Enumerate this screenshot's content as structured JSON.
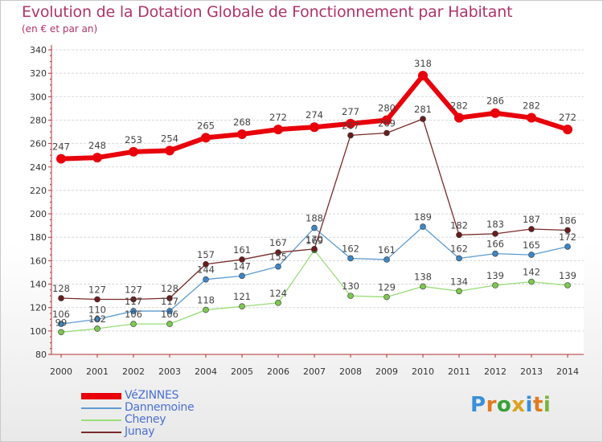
{
  "title": "Evolution de la Dotation Globale de Fonctionnement par Habitant",
  "subtitle": "(en € et par an)",
  "logo": {
    "text": "Proxiti",
    "letters": [
      "P",
      "r",
      "o",
      "x",
      "i",
      "t",
      "i"
    ],
    "colors": [
      "#3a8fd9",
      "#e07a1f",
      "#3aa03a",
      "#d9a21f",
      "#3a8fd9",
      "#e07a1f",
      "#7ab33a"
    ]
  },
  "chart_data": {
    "type": "line",
    "title": "Evolution de la Dotation Globale de Fonctionnement par Habitant",
    "subtitle": "(en € et par an)",
    "xlabel": "",
    "ylabel": "",
    "x": [
      2000,
      2001,
      2002,
      2003,
      2004,
      2005,
      2006,
      2007,
      2008,
      2009,
      2010,
      2011,
      2012,
      2013,
      2014
    ],
    "x_labels": [
      "2000",
      "2001",
      "2002",
      "2003",
      "2004",
      "2005",
      "2006",
      "2007",
      "2008",
      "2009",
      "2010",
      "2011",
      "2012",
      "2013",
      "2014"
    ],
    "ylim": [
      80,
      340
    ],
    "yticks": [
      80,
      100,
      120,
      140,
      160,
      180,
      200,
      220,
      240,
      260,
      280,
      300,
      320,
      340
    ],
    "ytick_labels": [
      "80",
      "100",
      "120",
      "140",
      "160",
      "180",
      "200",
      "220",
      "240",
      "260",
      "280",
      "300",
      "320",
      "340"
    ],
    "grid": "horizontal",
    "legend_position": "bottom-left",
    "series": [
      {
        "name": "VéZINNES",
        "color": "#e8000b",
        "marker": "#e8000b",
        "width": 6,
        "radius": 6,
        "values": [
          247,
          248,
          253,
          254,
          265,
          268,
          272,
          274,
          277,
          280,
          318,
          282,
          286,
          282,
          272
        ],
        "labels": [
          "247",
          "248",
          "253",
          "254",
          "265",
          "268",
          "272",
          "274",
          "277",
          "280",
          "318",
          "282",
          "286",
          "282",
          "272"
        ]
      },
      {
        "name": "Dannemoine",
        "color": "#5c9bd1",
        "marker": "#3d86c6",
        "width": 1.3,
        "radius": 3.5,
        "values": [
          106,
          110,
          117,
          117,
          144,
          147,
          155,
          188,
          162,
          161,
          189,
          162,
          166,
          165,
          172
        ],
        "labels": [
          "106",
          "110",
          "117",
          "117",
          "144",
          "147",
          "155",
          "188",
          "162",
          "161",
          "189",
          "162",
          "166",
          "165",
          "172"
        ]
      },
      {
        "name": "Cheney",
        "color": "#99dd77",
        "marker": "#7dc74f",
        "width": 1.3,
        "radius": 3.5,
        "values": [
          99,
          102,
          106,
          106,
          118,
          121,
          124,
          169,
          130,
          129,
          138,
          134,
          139,
          142,
          139
        ],
        "labels": [
          "99",
          "102",
          "106",
          "106",
          "118",
          "121",
          "124",
          "169",
          "130",
          "129",
          "138",
          "134",
          "139",
          "142",
          "139"
        ]
      },
      {
        "name": "Junay",
        "color": "#7a2a2a",
        "marker": "#6a1c1c",
        "width": 1.3,
        "radius": 3.5,
        "values": [
          128,
          127,
          127,
          128,
          157,
          161,
          167,
          170,
          267,
          269,
          281,
          182,
          183,
          187,
          186
        ],
        "labels": [
          "128",
          "127",
          "127",
          "128",
          "157",
          "161",
          "167",
          "170",
          "267",
          "269",
          "281",
          "182",
          "183",
          "187",
          "186"
        ]
      }
    ]
  }
}
